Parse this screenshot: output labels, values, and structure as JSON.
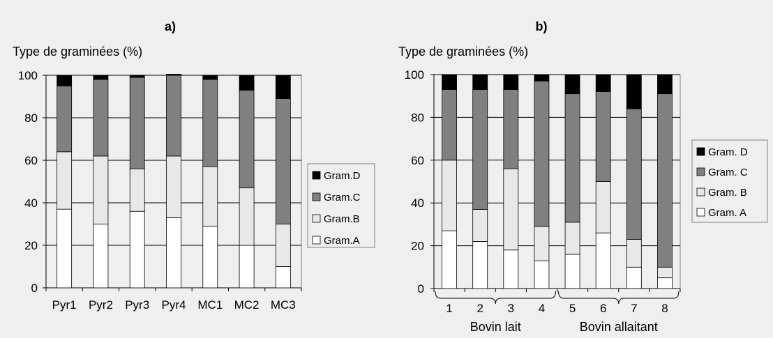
{
  "chart_data": [
    {
      "type": "bar",
      "stacked": true,
      "title": "a)",
      "ylabel": "Type de graminées (%)",
      "ylim": [
        0,
        100
      ],
      "yticks": [
        0,
        20,
        40,
        60,
        80,
        100
      ],
      "grid": true,
      "legend_position": "right",
      "categories": [
        "Pyr1",
        "Pyr2",
        "Pyr3",
        "Pyr4",
        "MC1",
        "MC2",
        "MC3"
      ],
      "series": [
        {
          "name": "Gram.A",
          "color": "#ffffff",
          "values": [
            37,
            30,
            36,
            33,
            29,
            20,
            10
          ]
        },
        {
          "name": "Gram.B",
          "color": "#e8e8e8",
          "values": [
            27,
            32,
            20,
            29,
            28,
            27,
            20
          ]
        },
        {
          "name": "Gram.C",
          "color": "#808080",
          "values": [
            31,
            36,
            43,
            38,
            41,
            46,
            59
          ]
        },
        {
          "name": "Gram.D",
          "color": "#000000",
          "values": [
            5,
            2,
            1,
            0.5,
            2,
            7,
            11
          ]
        }
      ],
      "legend_order": [
        "Gram.D",
        "Gram.C",
        "Gram.B",
        "Gram.A"
      ]
    },
    {
      "type": "bar",
      "stacked": true,
      "title": "b)",
      "ylabel": "Type de graminées (%)",
      "ylim": [
        0,
        100
      ],
      "yticks": [
        0,
        20,
        40,
        60,
        80,
        100
      ],
      "grid": true,
      "legend_position": "right",
      "categories": [
        "1",
        "2",
        "3",
        "4",
        "5",
        "6",
        "7",
        "8"
      ],
      "groups": [
        {
          "label": "Bovin lait",
          "categories": [
            "1",
            "2",
            "3",
            "4"
          ]
        },
        {
          "label": "Bovin allaitant",
          "categories": [
            "5",
            "6",
            "7",
            "8"
          ]
        }
      ],
      "series": [
        {
          "name": "Gram. A",
          "color": "#ffffff",
          "values": [
            27,
            22,
            18,
            13,
            16,
            26,
            10,
            5
          ]
        },
        {
          "name": "Gram. B",
          "color": "#e8e8e8",
          "values": [
            33,
            15,
            38,
            16,
            15,
            24,
            13,
            5
          ]
        },
        {
          "name": "Gram. C",
          "color": "#808080",
          "values": [
            33,
            56,
            37,
            68,
            60,
            42,
            61,
            81
          ]
        },
        {
          "name": "Gram. D",
          "color": "#000000",
          "values": [
            7,
            7,
            7,
            3,
            9,
            8,
            16,
            9
          ]
        }
      ],
      "legend_order": [
        "Gram. D",
        "Gram. C",
        "Gram. B",
        "Gram. A"
      ]
    }
  ]
}
